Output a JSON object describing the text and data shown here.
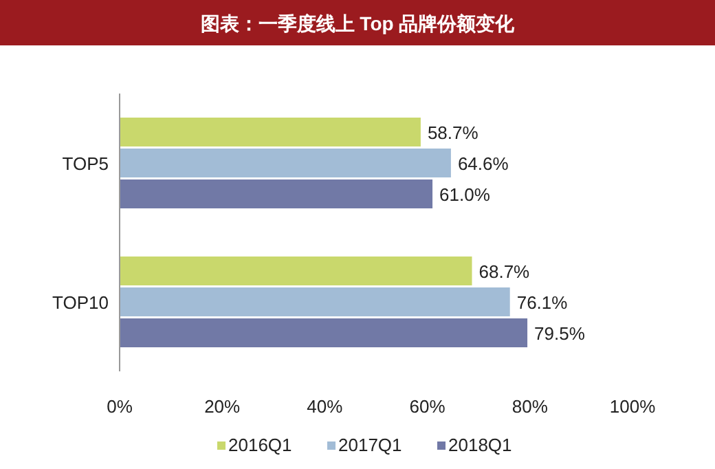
{
  "chart_data": {
    "type": "bar",
    "orientation": "horizontal",
    "title": "图表：一季度线上 Top 品牌份额变化",
    "categories": [
      "TOP5",
      "TOP10"
    ],
    "series": [
      {
        "name": "2016Q1",
        "color": "#c9d86c",
        "values": [
          58.7,
          68.7
        ],
        "value_labels": [
          "58.7%",
          "68.7%"
        ]
      },
      {
        "name": "2017Q1",
        "color": "#a2bcd6",
        "values": [
          64.6,
          76.1
        ],
        "value_labels": [
          "64.6%",
          "76.1%"
        ]
      },
      {
        "name": "2018Q1",
        "color": "#7179a6",
        "values": [
          61.0,
          79.5
        ],
        "value_labels": [
          "61.0%",
          "79.5%"
        ]
      }
    ],
    "xlim": [
      0,
      100
    ],
    "xticks": [
      {
        "value": 0,
        "label": "0%"
      },
      {
        "value": 20,
        "label": "20%"
      },
      {
        "value": 40,
        "label": "40%"
      },
      {
        "value": 60,
        "label": "60%"
      },
      {
        "value": 80,
        "label": "80%"
      },
      {
        "value": 100,
        "label": "100%"
      }
    ],
    "grid": false,
    "legend": "bottom"
  }
}
